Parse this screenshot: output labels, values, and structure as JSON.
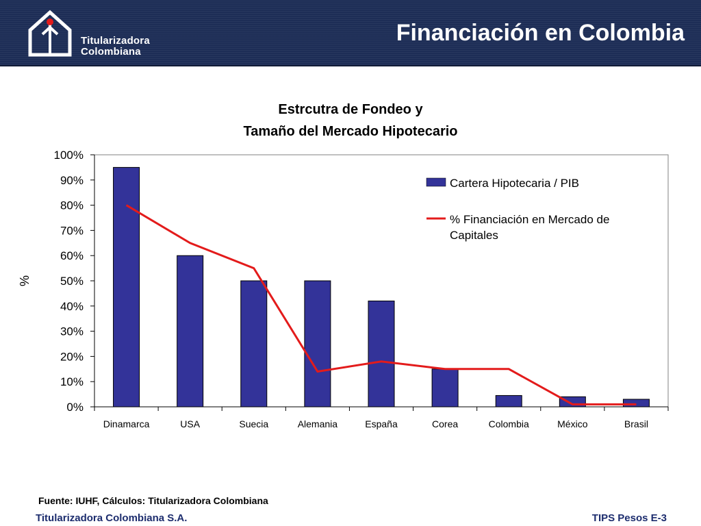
{
  "header": {
    "title": "Financiación en Colombia",
    "logo_line1": "Titularizadora",
    "logo_line2": "Colombiana",
    "logo_icon": "house-arrow-icon"
  },
  "chart_data": {
    "type": "bar",
    "title_line1": "Estrcutra de Fondeo y",
    "title_line2": "Tamaño del Mercado Hipotecario",
    "xlabel": "",
    "ylabel": "%",
    "ylim": [
      0,
      100
    ],
    "y_ticks": [
      "0%",
      "10%",
      "20%",
      "30%",
      "40%",
      "50%",
      "60%",
      "70%",
      "80%",
      "90%",
      "100%"
    ],
    "grid": false,
    "legend_position": "top-right",
    "categories": [
      "Dinamarca",
      "USA",
      "Suecia",
      "Alemania",
      "España",
      "Corea",
      "Colombia",
      "México",
      "Brasil"
    ],
    "series": [
      {
        "name": "Cartera Hipotecaria / PIB",
        "kind": "bar",
        "color": "#333399",
        "values": [
          95,
          60,
          50,
          50,
          42,
          15,
          4.5,
          4,
          3
        ]
      },
      {
        "name_line1": "% Financiación en Mercado de",
        "name_line2": "Capitales",
        "kind": "line",
        "color": "#e31b1b",
        "values": [
          80,
          65,
          55,
          14,
          18,
          15,
          15,
          1,
          1
        ]
      }
    ]
  },
  "footer": {
    "source": "Fuente: IUHF, Cálculos: Titularizadora Colombiana",
    "company": "Titularizadora Colombiana S.A.",
    "page_ref": "TIPS Pesos E-3"
  }
}
